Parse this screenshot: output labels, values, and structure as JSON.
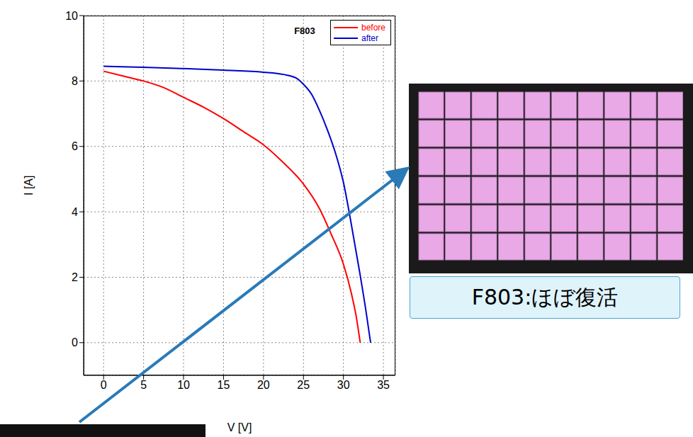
{
  "chart_data": {
    "type": "line",
    "title": "F803",
    "x_label": "V [V]",
    "y_label": "I [A]",
    "xlim": [
      -2.5,
      36.5
    ],
    "xticks": [
      0,
      5,
      10,
      15,
      20,
      25,
      30,
      35
    ],
    "ylim": [
      -1,
      10
    ],
    "yticks": [
      0,
      2,
      4,
      6,
      8,
      10
    ],
    "grid": true,
    "legend": "upper right",
    "series": [
      {
        "name": "before",
        "color": "#ff0000",
        "x": [
          0,
          2.5,
          5,
          7.5,
          10,
          12.5,
          15,
          17.5,
          20,
          22.5,
          25,
          27,
          28.5,
          30,
          31,
          31.6,
          32.1
        ],
        "values": [
          8.3,
          8.15,
          8.0,
          7.8,
          7.5,
          7.2,
          6.85,
          6.45,
          6.05,
          5.5,
          4.85,
          4.1,
          3.3,
          2.4,
          1.5,
          0.8,
          0
        ]
      },
      {
        "name": "after",
        "color": "#0000cc",
        "x": [
          0,
          5,
          10,
          15,
          20,
          22.5,
          24,
          25,
          26,
          27,
          28,
          29,
          30,
          31,
          32,
          32.8,
          33.4
        ],
        "values": [
          8.45,
          8.42,
          8.38,
          8.33,
          8.27,
          8.2,
          8.1,
          7.9,
          7.6,
          7.1,
          6.5,
          5.8,
          4.9,
          3.6,
          2.2,
          1.0,
          0
        ]
      }
    ],
    "annotation": "F803:ほぼ復活"
  }
}
